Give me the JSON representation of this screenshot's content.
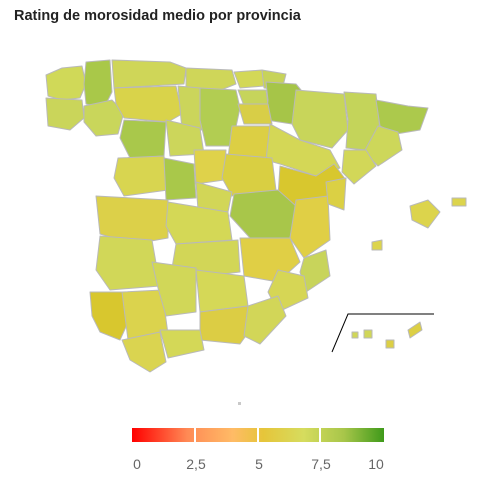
{
  "title": "Rating de morosidad medio por provincia",
  "legend": {
    "colors": [
      "#ff0000",
      "#ff8a55",
      "#ffbb66",
      "#e6c53a",
      "#d6dc5e",
      "#a8c64a",
      "#3f9a1a"
    ],
    "labels": [
      "0",
      "2,5",
      "5",
      "7,5",
      "10"
    ]
  },
  "colors": {
    "low_mid": "#d8c72e",
    "mid": "#dcd352",
    "mid_high": "#cbd75c",
    "high": "#a8c64a",
    "border": "#b9b9b9",
    "inset_line": "#000000"
  }
}
